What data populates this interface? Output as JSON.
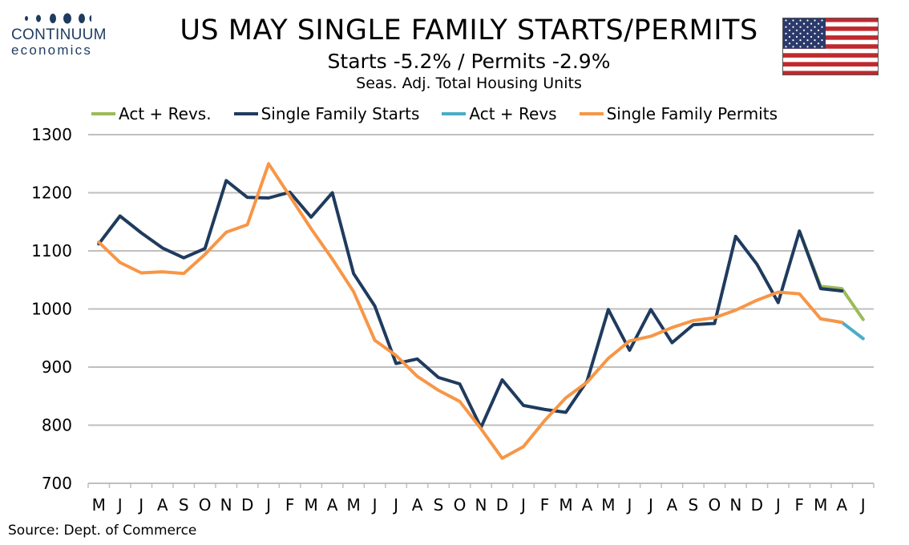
{
  "header": {
    "logo_word": "CONTINUUM",
    "logo_sub": "economics",
    "title": "US MAY SINGLE FAMILY STARTS/PERMITS",
    "subtitle": "Starts  -5.2% / Permits -2.9%",
    "subtitle2": "Seas. Adj. Total Housing Units",
    "flag_icon": "us-flag-icon"
  },
  "footer": {
    "source": "Source: Dept. of Commerce"
  },
  "colors": {
    "starts": "#1f3b5e",
    "starts_rev": "#9bbb59",
    "permits": "#f79646",
    "permits_rev": "#4bacc6",
    "grid": "#bfbfbf",
    "logo": "#1f3b5e"
  },
  "chart_data": {
    "type": "line",
    "categories": [
      "M",
      "J",
      "J",
      "A",
      "S",
      "O",
      "N",
      "D",
      "J",
      "F",
      "M",
      "A",
      "M",
      "J",
      "J",
      "A",
      "S",
      "O",
      "N",
      "D",
      "J",
      "F",
      "M",
      "A",
      "M",
      "J",
      "J",
      "A",
      "S",
      "O",
      "N",
      "D",
      "J",
      "F",
      "M",
      "A",
      "J"
    ],
    "ylim": [
      700,
      1300
    ],
    "yticks": [
      700,
      800,
      900,
      1000,
      1100,
      1200,
      1300
    ],
    "grid": true,
    "legend_position": "top",
    "legend": [
      "Act + Revs.",
      "Single Family Starts",
      "Act + Revs",
      "Single Family Permits"
    ],
    "series": [
      {
        "name": "Single Family Starts",
        "color_key": "starts",
        "values": [
          1112,
          1160,
          1131,
          1105,
          1088,
          1104,
          1221,
          1192,
          1191,
          1201,
          1158,
          1200,
          1061,
          1005,
          906,
          914,
          882,
          871,
          796,
          878,
          834,
          827,
          822,
          876,
          999,
          929,
          999,
          942,
          973,
          975,
          1125,
          1077,
          1011,
          1134,
          1035,
          1031,
          null
        ]
      },
      {
        "name": "Act + Revs.",
        "color_key": "starts_rev",
        "values": [
          null,
          null,
          null,
          null,
          null,
          null,
          null,
          null,
          null,
          null,
          null,
          null,
          null,
          null,
          null,
          null,
          null,
          null,
          null,
          null,
          null,
          null,
          null,
          null,
          null,
          null,
          null,
          null,
          null,
          null,
          null,
          null,
          null,
          1134,
          1039,
          1035,
          982
        ]
      },
      {
        "name": "Single Family Permits",
        "color_key": "permits",
        "values": [
          1115,
          1080,
          1062,
          1064,
          1061,
          1094,
          1132,
          1145,
          1250,
          1194,
          1138,
          1086,
          1030,
          946,
          920,
          884,
          860,
          841,
          794,
          743,
          763,
          808,
          847,
          874,
          915,
          945,
          953,
          968,
          980,
          985,
          998,
          1015,
          1029,
          1026,
          983,
          977,
          null
        ]
      },
      {
        "name": "Act + Revs",
        "color_key": "permits_rev",
        "values": [
          null,
          null,
          null,
          null,
          null,
          null,
          null,
          null,
          null,
          null,
          null,
          null,
          null,
          null,
          null,
          null,
          null,
          null,
          null,
          null,
          null,
          null,
          null,
          null,
          null,
          null,
          null,
          null,
          null,
          null,
          null,
          null,
          null,
          null,
          983,
          977,
          949
        ]
      }
    ]
  }
}
